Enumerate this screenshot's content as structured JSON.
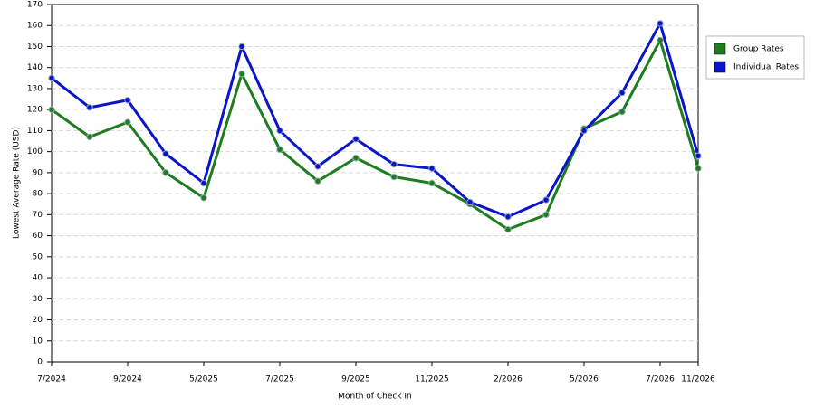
{
  "chart_data": {
    "type": "line",
    "x_label": "Month of Check In",
    "y_label": "Lowest Average Rate (USD)",
    "categories": [
      "7/2024",
      null,
      "9/2024",
      null,
      "5/2025",
      null,
      "7/2025",
      null,
      "9/2025",
      null,
      "11/2025",
      null,
      "2/2026",
      null,
      "5/2026",
      null,
      "7/2026",
      "11/2026"
    ],
    "series": [
      {
        "name": "Group Rates",
        "color": "#1e7d1e",
        "values": [
          120,
          107,
          114,
          90,
          78,
          137,
          101,
          86,
          97,
          88,
          85,
          75,
          63,
          70,
          111,
          119,
          153,
          92
        ]
      },
      {
        "name": "Individual Rates",
        "color": "#0a14c8",
        "values": [
          135,
          121,
          124.5,
          99,
          85,
          150,
          110,
          93,
          106,
          94,
          92,
          76,
          69,
          77,
          110,
          128,
          161,
          98
        ]
      }
    ],
    "ylim": [
      0,
      170
    ],
    "yticks": [
      0,
      10,
      20,
      30,
      40,
      50,
      60,
      70,
      80,
      90,
      100,
      110,
      120,
      130,
      140,
      150,
      160,
      170
    ],
    "grid": true,
    "legend": "right"
  }
}
